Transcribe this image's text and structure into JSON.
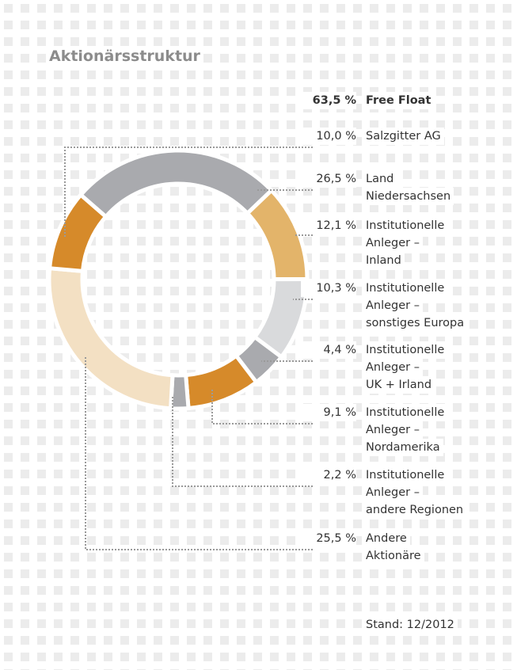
{
  "chart_data": {
    "type": "donut",
    "title": "Aktionärsstruktur",
    "summary_value_label": "63,5 %",
    "summary_label": "Free Float",
    "categories": [
      [
        "Salzgitter AG"
      ],
      [
        "Land",
        "Niedersachsen"
      ],
      [
        "Institutionelle",
        "Anleger –",
        "Inland"
      ],
      [
        "Institutionelle",
        "Anleger –",
        "sonstiges Europa"
      ],
      [
        "Institutionelle",
        "Anleger –",
        "UK + Irland"
      ],
      [
        "Institutionelle",
        "Anleger –",
        "Nordamerika"
      ],
      [
        "Institutionelle",
        "Anleger –",
        "andere Regionen"
      ],
      [
        "Andere",
        "Aktionäre"
      ]
    ],
    "values": [
      10.0,
      26.5,
      12.1,
      10.3,
      4.4,
      9.1,
      2.2,
      25.5
    ],
    "value_labels": [
      "10,0 %",
      "26,5 %",
      "12,1 %",
      "10,3 %",
      "4,4 %",
      "9,1 %",
      "2,2 %",
      "25,5 %"
    ],
    "colors": [
      "#d68a2a",
      "#a9aaae",
      "#e3b46a",
      "#d9dadc",
      "#a9aaae",
      "#d68a2a",
      "#a9aaae",
      "#f3e0c3"
    ],
    "note": "Stand: 12/2012"
  }
}
